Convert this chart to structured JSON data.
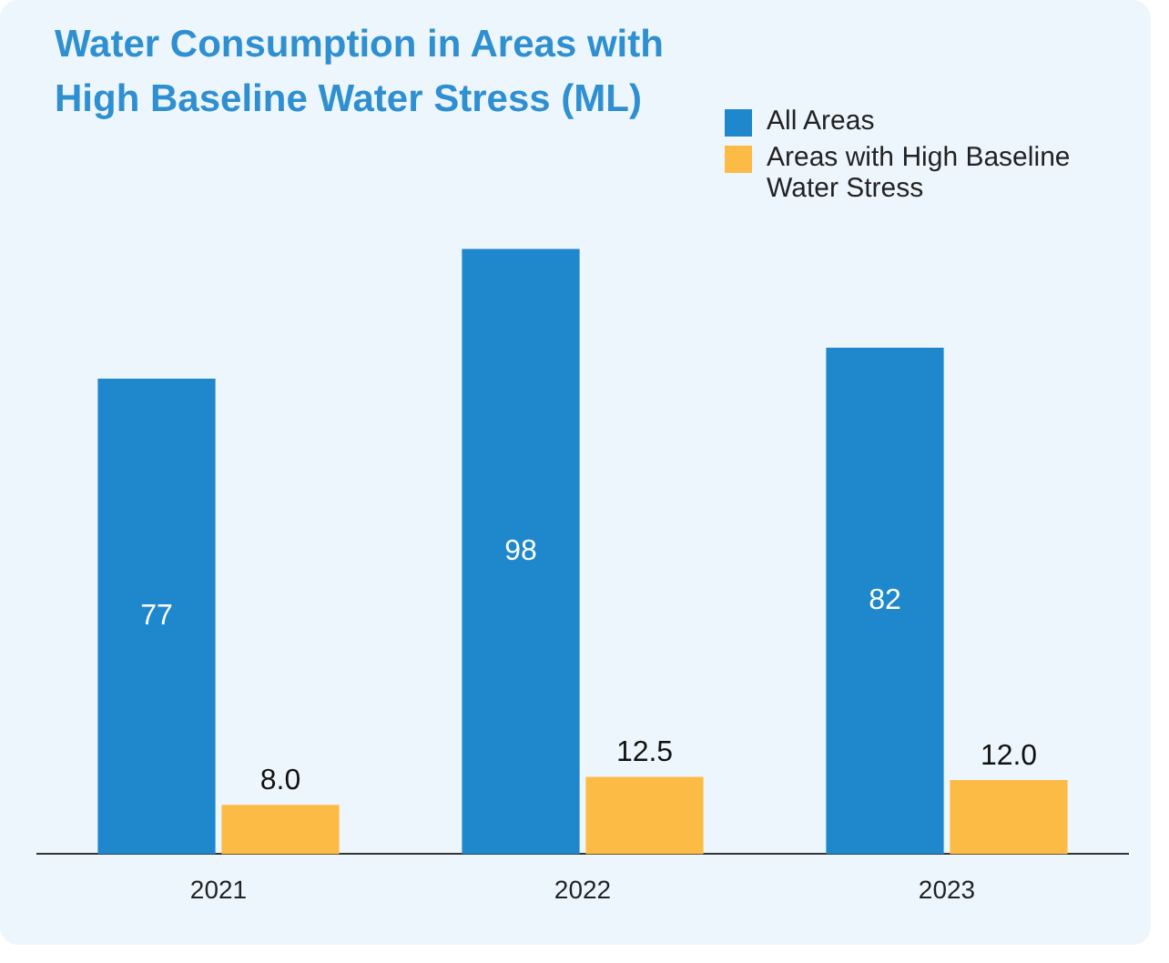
{
  "chart_data": {
    "type": "bar",
    "title": "Water Consumption in Areas with High Baseline Water Stress (ML)",
    "categories": [
      "2021",
      "2022",
      "2023"
    ],
    "series": [
      {
        "name": "All Areas",
        "color": "#1f87cc",
        "values": [
          77,
          98,
          82
        ],
        "value_labels": [
          "77",
          "98",
          "82"
        ]
      },
      {
        "name": "Areas with High Baseline Water Stress",
        "color": "#fbbb45",
        "values": [
          8.0,
          12.5,
          12.0
        ],
        "value_labels": [
          "8.0",
          "12.5",
          "12.0"
        ]
      }
    ],
    "legend": "top right",
    "grid": false,
    "tick_labels": "x"
  }
}
